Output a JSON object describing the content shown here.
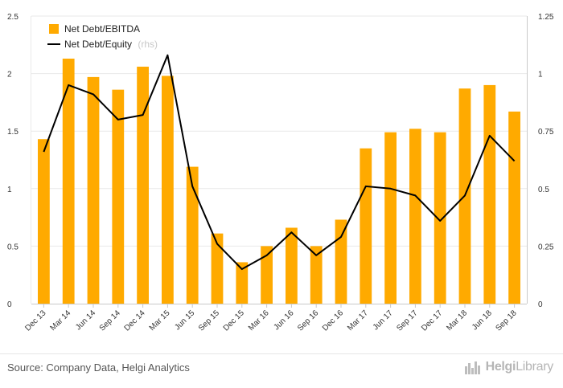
{
  "chart_data": {
    "type": "bar",
    "categories": [
      "Dec 13",
      "Mar 14",
      "Jun 14",
      "Sep 14",
      "Dec 14",
      "Mar 15",
      "Jun 15",
      "Sep 15",
      "Dec 15",
      "Mar 16",
      "Jun 16",
      "Sep 16",
      "Dec 16",
      "Mar 17",
      "Jun 17",
      "Sep 17",
      "Dec 17",
      "Mar 18",
      "Jun 18",
      "Sep 18"
    ],
    "series": [
      {
        "name": "Net Debt/EBITDA",
        "type": "bar",
        "axis": "left",
        "color": "#ffaa00",
        "values": [
          1.43,
          2.13,
          1.97,
          1.86,
          2.06,
          1.98,
          1.19,
          0.61,
          0.36,
          0.5,
          0.66,
          0.5,
          0.73,
          1.35,
          1.49,
          1.52,
          1.49,
          1.87,
          1.9,
          1.67
        ]
      },
      {
        "name": "Net Debt/Equity",
        "name_note": "(rhs)",
        "type": "line",
        "axis": "right",
        "color": "#000000",
        "values": [
          0.66,
          0.95,
          0.91,
          0.8,
          0.82,
          1.08,
          0.51,
          0.26,
          0.15,
          0.21,
          0.31,
          0.21,
          0.29,
          0.51,
          0.5,
          0.47,
          0.36,
          0.47,
          0.73,
          0.62
        ]
      }
    ],
    "y_left": {
      "min": 0,
      "max": 2.5,
      "ticks": [
        "0",
        "0.5",
        "1",
        "1.5",
        "2",
        "2.5"
      ]
    },
    "y_right": {
      "min": 0,
      "max": 1.25,
      "ticks": [
        "0",
        "0.25",
        "0.5",
        "0.75",
        "1",
        "1.25"
      ]
    },
    "grid": true,
    "legend_position": "top-left"
  },
  "footer": {
    "source": "Source: Company Data, Helgi Analytics",
    "brand_prefix": "Helgi",
    "brand_suffix": "Library"
  }
}
